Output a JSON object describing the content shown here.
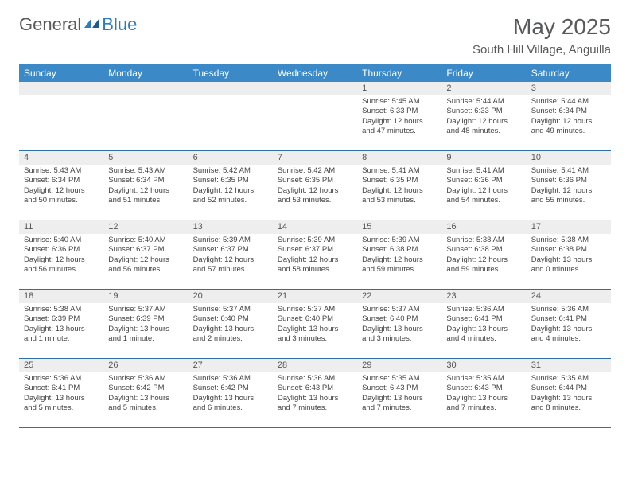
{
  "logo": {
    "text1": "General",
    "text2": "Blue"
  },
  "title": "May 2025",
  "location": "South Hill Village, Anguilla",
  "day_headers": [
    "Sunday",
    "Monday",
    "Tuesday",
    "Wednesday",
    "Thursday",
    "Friday",
    "Saturday"
  ],
  "colors": {
    "header_bg": "#3b89c7",
    "header_text": "#ffffff",
    "daynum_bg": "#eeeeee",
    "border": "#2f6fa8",
    "text": "#58595b",
    "logo_blue": "#2f7bbf"
  },
  "weeks": [
    [
      {
        "n": "",
        "sr": "",
        "ss": "",
        "dl": ""
      },
      {
        "n": "",
        "sr": "",
        "ss": "",
        "dl": ""
      },
      {
        "n": "",
        "sr": "",
        "ss": "",
        "dl": ""
      },
      {
        "n": "",
        "sr": "",
        "ss": "",
        "dl": ""
      },
      {
        "n": "1",
        "sr": "Sunrise: 5:45 AM",
        "ss": "Sunset: 6:33 PM",
        "dl": "Daylight: 12 hours and 47 minutes."
      },
      {
        "n": "2",
        "sr": "Sunrise: 5:44 AM",
        "ss": "Sunset: 6:33 PM",
        "dl": "Daylight: 12 hours and 48 minutes."
      },
      {
        "n": "3",
        "sr": "Sunrise: 5:44 AM",
        "ss": "Sunset: 6:34 PM",
        "dl": "Daylight: 12 hours and 49 minutes."
      }
    ],
    [
      {
        "n": "4",
        "sr": "Sunrise: 5:43 AM",
        "ss": "Sunset: 6:34 PM",
        "dl": "Daylight: 12 hours and 50 minutes."
      },
      {
        "n": "5",
        "sr": "Sunrise: 5:43 AM",
        "ss": "Sunset: 6:34 PM",
        "dl": "Daylight: 12 hours and 51 minutes."
      },
      {
        "n": "6",
        "sr": "Sunrise: 5:42 AM",
        "ss": "Sunset: 6:35 PM",
        "dl": "Daylight: 12 hours and 52 minutes."
      },
      {
        "n": "7",
        "sr": "Sunrise: 5:42 AM",
        "ss": "Sunset: 6:35 PM",
        "dl": "Daylight: 12 hours and 53 minutes."
      },
      {
        "n": "8",
        "sr": "Sunrise: 5:41 AM",
        "ss": "Sunset: 6:35 PM",
        "dl": "Daylight: 12 hours and 53 minutes."
      },
      {
        "n": "9",
        "sr": "Sunrise: 5:41 AM",
        "ss": "Sunset: 6:36 PM",
        "dl": "Daylight: 12 hours and 54 minutes."
      },
      {
        "n": "10",
        "sr": "Sunrise: 5:41 AM",
        "ss": "Sunset: 6:36 PM",
        "dl": "Daylight: 12 hours and 55 minutes."
      }
    ],
    [
      {
        "n": "11",
        "sr": "Sunrise: 5:40 AM",
        "ss": "Sunset: 6:36 PM",
        "dl": "Daylight: 12 hours and 56 minutes."
      },
      {
        "n": "12",
        "sr": "Sunrise: 5:40 AM",
        "ss": "Sunset: 6:37 PM",
        "dl": "Daylight: 12 hours and 56 minutes."
      },
      {
        "n": "13",
        "sr": "Sunrise: 5:39 AM",
        "ss": "Sunset: 6:37 PM",
        "dl": "Daylight: 12 hours and 57 minutes."
      },
      {
        "n": "14",
        "sr": "Sunrise: 5:39 AM",
        "ss": "Sunset: 6:37 PM",
        "dl": "Daylight: 12 hours and 58 minutes."
      },
      {
        "n": "15",
        "sr": "Sunrise: 5:39 AM",
        "ss": "Sunset: 6:38 PM",
        "dl": "Daylight: 12 hours and 59 minutes."
      },
      {
        "n": "16",
        "sr": "Sunrise: 5:38 AM",
        "ss": "Sunset: 6:38 PM",
        "dl": "Daylight: 12 hours and 59 minutes."
      },
      {
        "n": "17",
        "sr": "Sunrise: 5:38 AM",
        "ss": "Sunset: 6:38 PM",
        "dl": "Daylight: 13 hours and 0 minutes."
      }
    ],
    [
      {
        "n": "18",
        "sr": "Sunrise: 5:38 AM",
        "ss": "Sunset: 6:39 PM",
        "dl": "Daylight: 13 hours and 1 minute."
      },
      {
        "n": "19",
        "sr": "Sunrise: 5:37 AM",
        "ss": "Sunset: 6:39 PM",
        "dl": "Daylight: 13 hours and 1 minute."
      },
      {
        "n": "20",
        "sr": "Sunrise: 5:37 AM",
        "ss": "Sunset: 6:40 PM",
        "dl": "Daylight: 13 hours and 2 minutes."
      },
      {
        "n": "21",
        "sr": "Sunrise: 5:37 AM",
        "ss": "Sunset: 6:40 PM",
        "dl": "Daylight: 13 hours and 3 minutes."
      },
      {
        "n": "22",
        "sr": "Sunrise: 5:37 AM",
        "ss": "Sunset: 6:40 PM",
        "dl": "Daylight: 13 hours and 3 minutes."
      },
      {
        "n": "23",
        "sr": "Sunrise: 5:36 AM",
        "ss": "Sunset: 6:41 PM",
        "dl": "Daylight: 13 hours and 4 minutes."
      },
      {
        "n": "24",
        "sr": "Sunrise: 5:36 AM",
        "ss": "Sunset: 6:41 PM",
        "dl": "Daylight: 13 hours and 4 minutes."
      }
    ],
    [
      {
        "n": "25",
        "sr": "Sunrise: 5:36 AM",
        "ss": "Sunset: 6:41 PM",
        "dl": "Daylight: 13 hours and 5 minutes."
      },
      {
        "n": "26",
        "sr": "Sunrise: 5:36 AM",
        "ss": "Sunset: 6:42 PM",
        "dl": "Daylight: 13 hours and 5 minutes."
      },
      {
        "n": "27",
        "sr": "Sunrise: 5:36 AM",
        "ss": "Sunset: 6:42 PM",
        "dl": "Daylight: 13 hours and 6 minutes."
      },
      {
        "n": "28",
        "sr": "Sunrise: 5:36 AM",
        "ss": "Sunset: 6:43 PM",
        "dl": "Daylight: 13 hours and 7 minutes."
      },
      {
        "n": "29",
        "sr": "Sunrise: 5:35 AM",
        "ss": "Sunset: 6:43 PM",
        "dl": "Daylight: 13 hours and 7 minutes."
      },
      {
        "n": "30",
        "sr": "Sunrise: 5:35 AM",
        "ss": "Sunset: 6:43 PM",
        "dl": "Daylight: 13 hours and 7 minutes."
      },
      {
        "n": "31",
        "sr": "Sunrise: 5:35 AM",
        "ss": "Sunset: 6:44 PM",
        "dl": "Daylight: 13 hours and 8 minutes."
      }
    ]
  ]
}
